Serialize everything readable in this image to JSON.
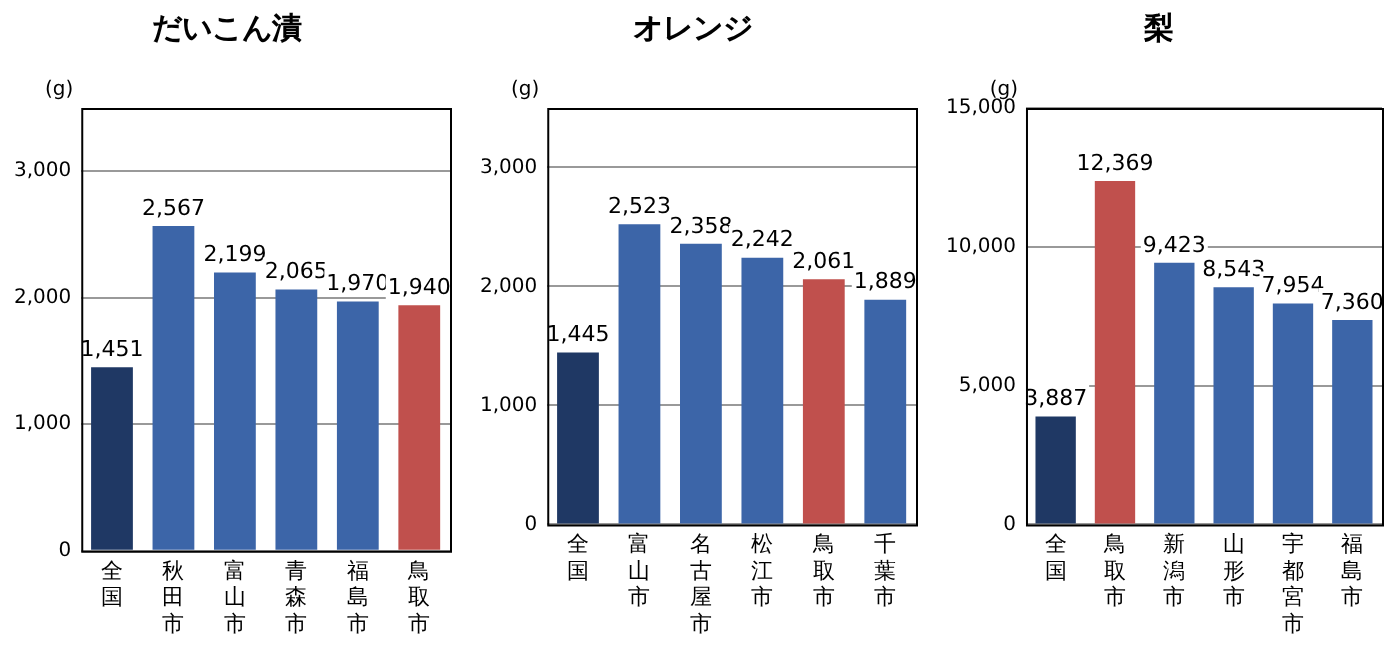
{
  "chart_data": [
    {
      "type": "bar",
      "title": "だいこん漬",
      "ylabel": "(g)",
      "categories": [
        "全国",
        "秋田市",
        "富山市",
        "青森市",
        "福島市",
        "鳥取市"
      ],
      "values": [
        1451,
        2567,
        2199,
        2065,
        1970,
        1940
      ],
      "value_labels": [
        "1,451",
        "2,567",
        "2,199",
        "2,065",
        "1,970",
        "1,940"
      ],
      "colors": [
        "#1f3864",
        "#3c65a8",
        "#3c65a8",
        "#3c65a8",
        "#3c65a8",
        "#c0504d"
      ],
      "ylim": [
        0,
        3500
      ],
      "yticks": [
        {
          "value": 0,
          "label": "0"
        },
        {
          "value": 1000,
          "label": "1,000"
        },
        {
          "value": 2000,
          "label": "2,000"
        },
        {
          "value": 3000,
          "label": "3,000"
        }
      ],
      "grid": "y",
      "legend": false
    },
    {
      "type": "bar",
      "title": "オレンジ",
      "ylabel": "(g)",
      "categories": [
        "全国",
        "富山市",
        "名古屋市",
        "松江市",
        "鳥取市",
        "千葉市"
      ],
      "values": [
        1445,
        2523,
        2358,
        2242,
        2061,
        1889
      ],
      "value_labels": [
        "1,445",
        "2,523",
        "2,358",
        "2,242",
        "2,061",
        "1,889"
      ],
      "colors": [
        "#1f3864",
        "#3c65a8",
        "#3c65a8",
        "#3c65a8",
        "#c0504d",
        "#3c65a8"
      ],
      "ylim": [
        0,
        3500
      ],
      "yticks": [
        {
          "value": 0,
          "label": "0"
        },
        {
          "value": 1000,
          "label": "1,000"
        },
        {
          "value": 2000,
          "label": "2,000"
        },
        {
          "value": 3000,
          "label": "3,000"
        }
      ],
      "grid": "y",
      "legend": false
    },
    {
      "type": "bar",
      "title": "梨",
      "ylabel": "(g)",
      "categories": [
        "全国",
        "鳥取市",
        "新潟市",
        "山形市",
        "宇都宮市",
        "福島市"
      ],
      "values": [
        3887,
        12369,
        9423,
        8543,
        7954,
        7360
      ],
      "value_labels": [
        "3,887",
        "12,369",
        "9,423",
        "8,543",
        "7,954",
        "7,360"
      ],
      "colors": [
        "#1f3864",
        "#c0504d",
        "#3c65a8",
        "#3c65a8",
        "#3c65a8",
        "#3c65a8"
      ],
      "ylim": [
        0,
        15000
      ],
      "yticks": [
        {
          "value": 0,
          "label": "0"
        },
        {
          "value": 5000,
          "label": "5,000"
        },
        {
          "value": 10000,
          "label": "10,000"
        },
        {
          "value": 15000,
          "label": "15,000"
        }
      ],
      "grid": "y",
      "legend": false
    }
  ]
}
